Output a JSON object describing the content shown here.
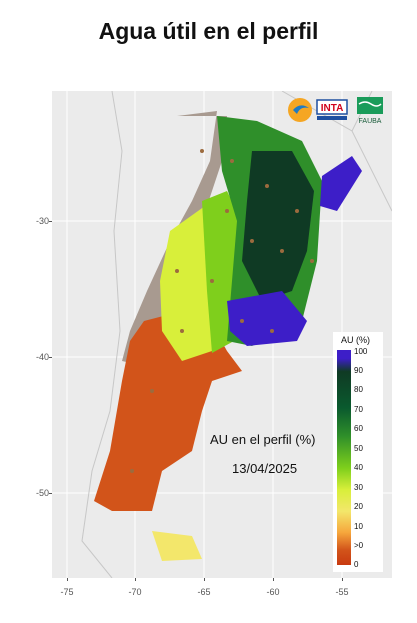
{
  "title": "Agua útil en el perfil",
  "map": {
    "annotation_title": "AU en el perfil (%)",
    "date": "13/04/2025",
    "y_axis_ticks": [
      "-30",
      "-40",
      "-50"
    ],
    "x_axis_ticks": [
      "-75",
      "-70",
      "-65",
      "-60",
      "-55"
    ]
  },
  "legend": {
    "title": "AU (%)",
    "labels": [
      "100",
      "90",
      "80",
      "70",
      "60",
      "50",
      "40",
      "30",
      "20",
      "10",
      ">0",
      "0"
    ],
    "colors": {
      "high": "#3d1ec8",
      "very_wet": "#0f3a24",
      "wet": "#2f8f2a",
      "mid": "#7fcf1c",
      "low": "#f3e76b",
      "dry": "#d2541a",
      "no_data": "#a89a90"
    }
  },
  "logos": {
    "inta": "INTA",
    "fauba": "FAUBA"
  }
}
